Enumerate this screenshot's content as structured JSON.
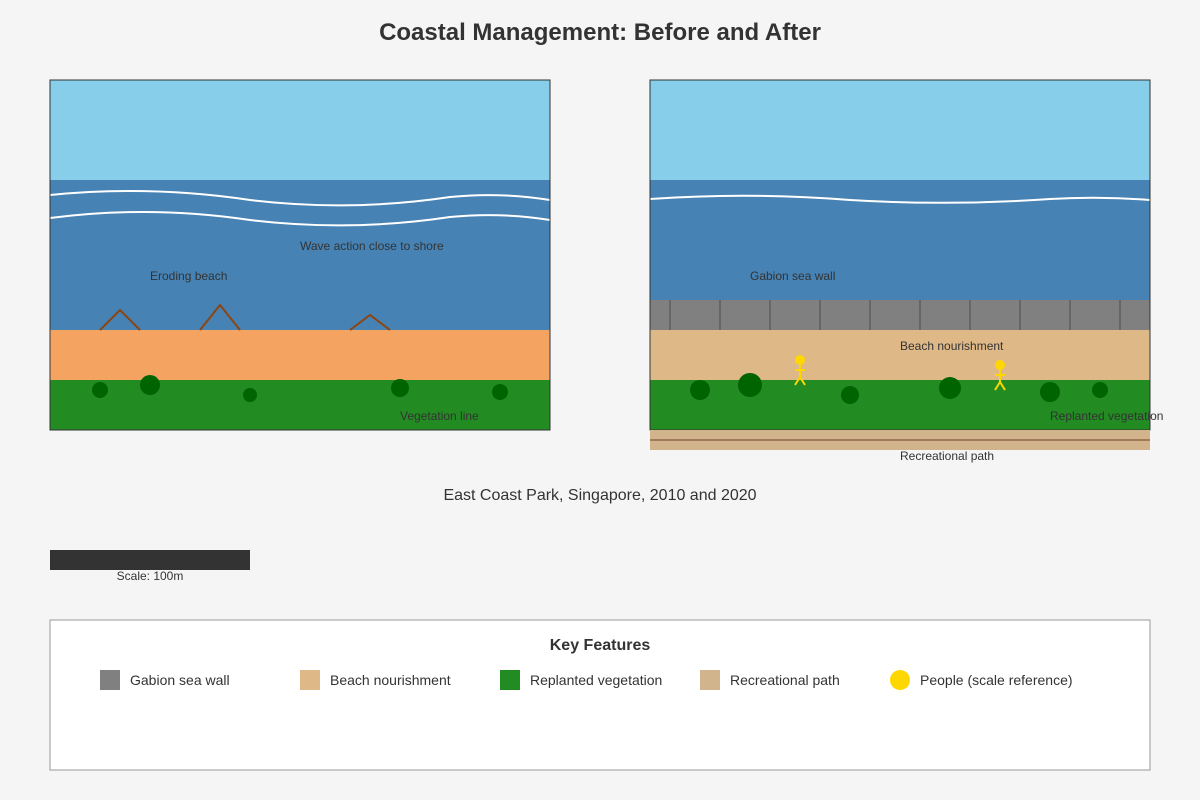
{
  "title": "Coastal Management: Before and After",
  "before_panel": {
    "labels": {
      "wave_action": "Wave action close to shore",
      "eroding_beach": "Eroding beach",
      "vegetation_line": "Vegetation line"
    }
  },
  "after_panel": {
    "labels": {
      "gabion_sea_wall": "Gabion sea wall",
      "beach_nourishment": "Beach nourishment",
      "replanted_vegetation": "Replanted vegetation",
      "recreational_path": "Recreational path"
    }
  },
  "caption": "East Coast Park, Singapore, 2010 and 2020",
  "scale_bar": {
    "label": "Scale: 100m"
  },
  "legend": {
    "title": "Key Features",
    "items": [
      {
        "label": "Gabion sea wall",
        "color": "#808080",
        "shape": "square"
      },
      {
        "label": "Beach nourishment",
        "color": "#deb887",
        "shape": "square"
      },
      {
        "label": "Replanted vegetation",
        "color": "#228b22",
        "shape": "square"
      },
      {
        "label": "Recreational path",
        "color": "#d2b48c",
        "shape": "square"
      },
      {
        "label": "People (scale reference)",
        "color": "#ffd700",
        "shape": "circle"
      }
    ]
  },
  "colors": {
    "background": "#f5f5f5",
    "sky": "#87ceeb",
    "sea": "#4682b4",
    "eroding_sand": "#f4a460",
    "nourished_sand": "#deb887",
    "vegetation": "#228b22",
    "tree": "#006400",
    "sea_wall": "#808080",
    "path": "#d2b48c",
    "people": "#ffd700",
    "erosion_marks": "#8b4513",
    "text": "#333333"
  }
}
